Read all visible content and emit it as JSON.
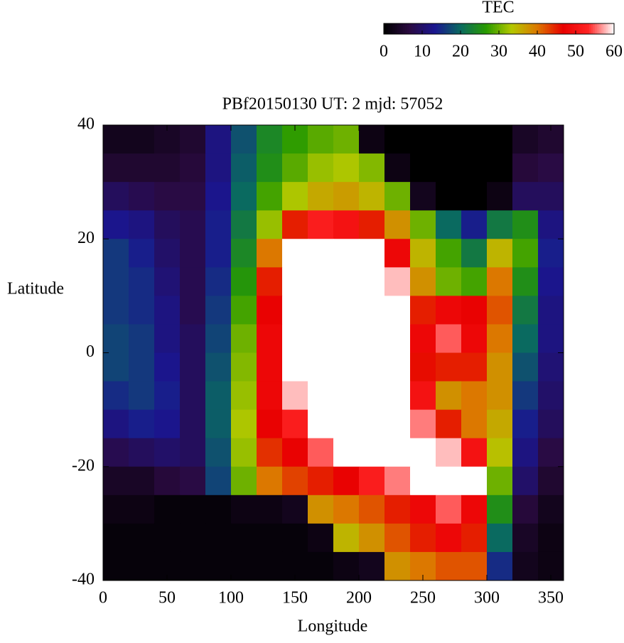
{
  "chart_data": {
    "type": "heatmap",
    "title": "PBf20150130  UT: 2  mjd: 57052",
    "xlabel": "Longitude",
    "ylabel": "Latitude",
    "colorbar_label": "TEC",
    "x": [
      10,
      30,
      50,
      70,
      90,
      110,
      130,
      150,
      170,
      190,
      210,
      230,
      250,
      270,
      290,
      310,
      330,
      350
    ],
    "y": [
      37.5,
      32.5,
      27.5,
      22.5,
      17.5,
      12.5,
      7.5,
      2.5,
      -2.5,
      -7.5,
      -12.5,
      -17.5,
      -22.5,
      -27.5,
      -32.5,
      -37.5
    ],
    "z": [
      [
        3,
        3,
        4,
        5,
        12,
        18,
        24,
        27,
        29,
        30,
        2,
        0,
        0,
        0,
        0,
        0,
        4,
        5
      ],
      [
        5,
        5,
        5,
        6,
        12,
        19,
        25,
        29,
        32,
        33,
        31,
        2,
        0,
        0,
        0,
        0,
        6,
        7
      ],
      [
        9,
        8,
        7,
        7,
        13,
        20,
        28,
        33,
        36,
        37,
        35,
        30,
        3,
        0,
        0,
        2,
        9,
        9
      ],
      [
        13,
        12,
        9,
        8,
        14,
        22,
        32,
        45,
        52,
        50,
        45,
        38,
        30,
        20,
        14,
        22,
        25,
        12
      ],
      [
        16,
        14,
        10,
        8,
        14,
        24,
        40,
        60,
        60,
        60,
        60,
        48,
        35,
        28,
        22,
        35,
        28,
        14
      ],
      [
        16,
        15,
        11,
        8,
        15,
        26,
        45,
        60,
        60,
        60,
        60,
        58,
        38,
        30,
        28,
        40,
        25,
        13
      ],
      [
        16,
        15,
        12,
        8,
        16,
        28,
        47,
        60,
        60,
        60,
        60,
        60,
        45,
        48,
        47,
        42,
        22,
        12
      ],
      [
        17,
        16,
        12,
        9,
        17,
        30,
        48,
        60,
        60,
        60,
        60,
        60,
        48,
        55,
        48,
        40,
        20,
        12
      ],
      [
        17,
        16,
        13,
        9,
        18,
        31,
        48,
        60,
        60,
        60,
        60,
        60,
        46,
        45,
        45,
        38,
        18,
        11
      ],
      [
        15,
        16,
        14,
        9,
        19,
        32,
        48,
        58,
        60,
        60,
        60,
        60,
        50,
        38,
        40,
        38,
        16,
        10
      ],
      [
        12,
        14,
        13,
        9,
        19,
        33,
        47,
        52,
        60,
        60,
        60,
        60,
        56,
        45,
        40,
        36,
        14,
        9
      ],
      [
        8,
        9,
        10,
        9,
        18,
        32,
        44,
        47,
        55,
        60,
        60,
        60,
        60,
        58,
        50,
        34,
        12,
        7
      ],
      [
        4,
        4,
        6,
        7,
        17,
        30,
        40,
        43,
        45,
        47,
        52,
        56,
        60,
        60,
        60,
        30,
        10,
        5
      ],
      [
        2,
        2,
        1,
        1,
        1,
        2,
        2,
        3,
        38,
        40,
        42,
        45,
        48,
        55,
        48,
        25,
        6,
        3
      ],
      [
        1,
        1,
        1,
        1,
        1,
        1,
        1,
        1,
        2,
        35,
        38,
        42,
        45,
        48,
        45,
        20,
        4,
        2
      ],
      [
        1,
        1,
        1,
        1,
        1,
        1,
        1,
        1,
        1,
        2,
        3,
        38,
        40,
        42,
        42,
        15,
        3,
        2
      ]
    ],
    "xlim": [
      0,
      360
    ],
    "ylim": [
      -40,
      40
    ],
    "xticks": [
      0,
      50,
      100,
      150,
      200,
      250,
      300,
      350
    ],
    "yticks": [
      -40,
      -20,
      0,
      20,
      40
    ],
    "clim": [
      0,
      60
    ],
    "cticks": [
      0,
      10,
      20,
      30,
      40,
      50,
      60
    ],
    "colormap": [
      "#000000",
      "#2a0a40",
      "#1a1690",
      "#0a6a60",
      "#289a00",
      "#b4c800",
      "#dc7800",
      "#e80000",
      "#ff2424",
      "#ffffff"
    ]
  }
}
